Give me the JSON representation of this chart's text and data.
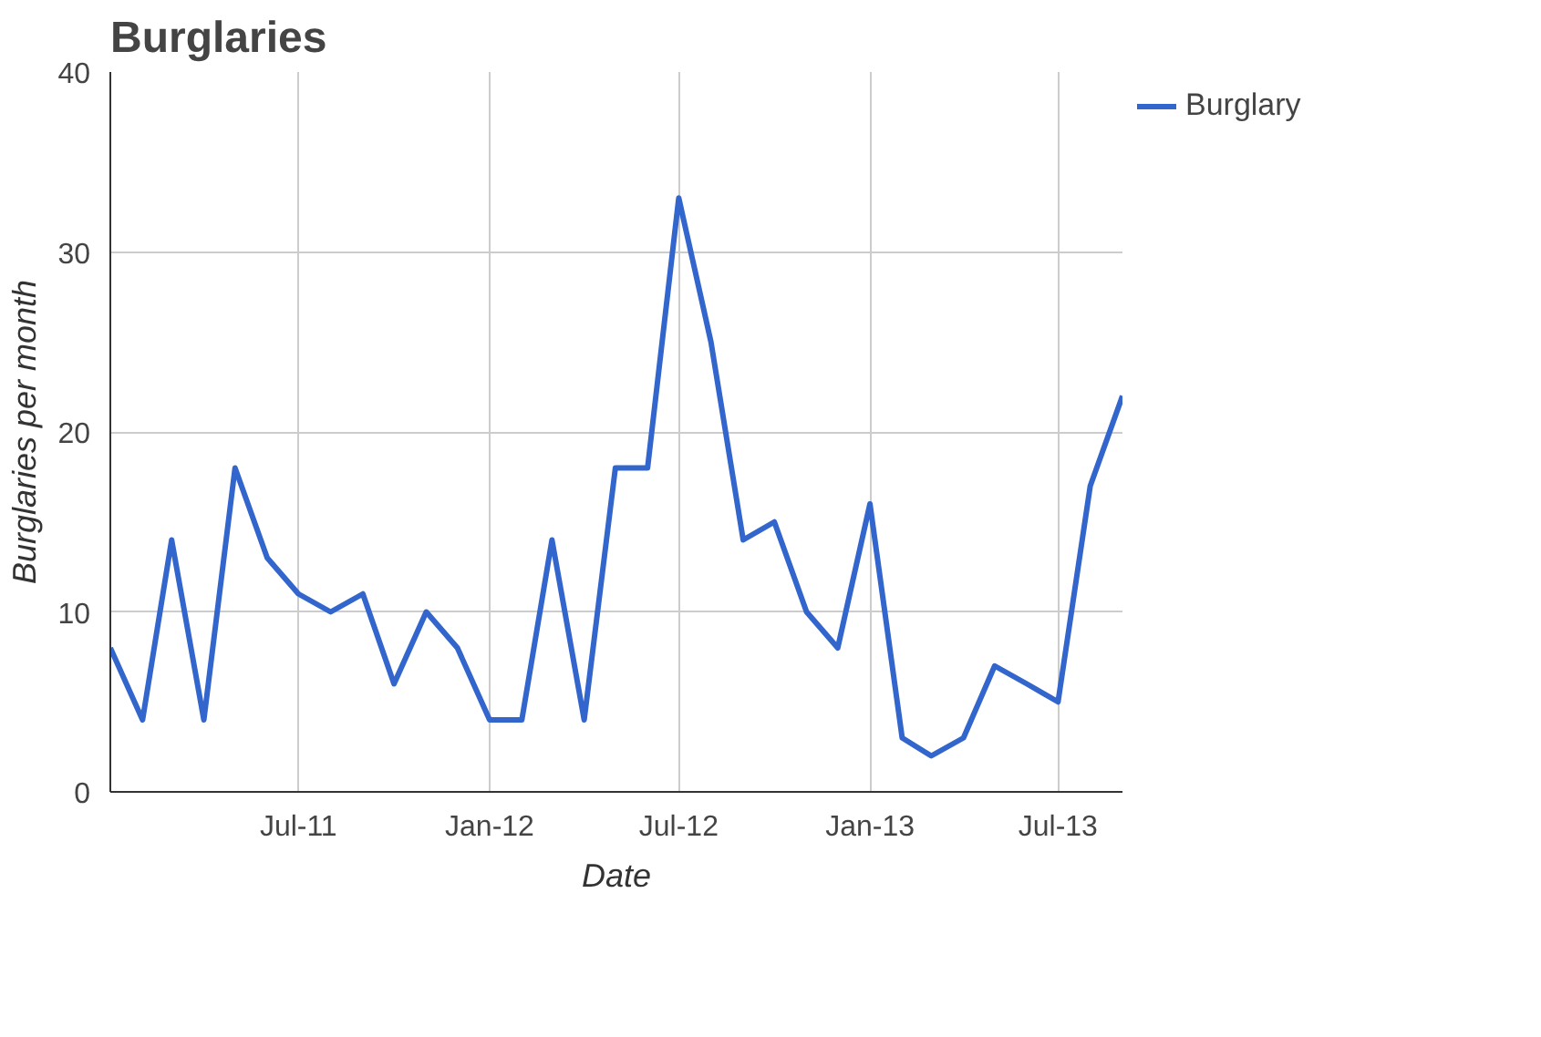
{
  "chart_data": {
    "type": "line",
    "title": "Burglaries",
    "xlabel": "Date",
    "ylabel": "Burglaries per month",
    "x": [
      "2011-01",
      "2011-02",
      "2011-03",
      "2011-04",
      "2011-05",
      "2011-06",
      "2011-07",
      "2011-08",
      "2011-09",
      "2011-10",
      "2011-11",
      "2011-12",
      "2012-01",
      "2012-02",
      "2012-03",
      "2012-04",
      "2012-05",
      "2012-06",
      "2012-07",
      "2012-08",
      "2012-09",
      "2012-10",
      "2012-11",
      "2012-12",
      "2013-01",
      "2013-02",
      "2013-03",
      "2013-04",
      "2013-05",
      "2013-06",
      "2013-07",
      "2013-08",
      "2013-09"
    ],
    "series": [
      {
        "name": "Burglary",
        "color": "#3366cc",
        "values": [
          8,
          4,
          14,
          4,
          18,
          13,
          11,
          10,
          11,
          6,
          10,
          8,
          4,
          4,
          14,
          4,
          18,
          18,
          33,
          25,
          14,
          15,
          10,
          8,
          16,
          3,
          2,
          3,
          7,
          6,
          5,
          17,
          22
        ]
      }
    ],
    "xlim": [
      "2011-01",
      "2013-09"
    ],
    "xticks": [
      {
        "value": "2011-07",
        "label": "Jul-11"
      },
      {
        "value": "2012-01",
        "label": "Jan-12"
      },
      {
        "value": "2012-07",
        "label": "Jul-12"
      },
      {
        "value": "2013-01",
        "label": "Jan-13"
      },
      {
        "value": "2013-07",
        "label": "Jul-13"
      }
    ],
    "ylim": [
      0,
      40
    ],
    "yticks": [
      0,
      10,
      20,
      30,
      40
    ],
    "grid": true,
    "legend": "top right",
    "marker": "none",
    "line_style": "solid"
  }
}
